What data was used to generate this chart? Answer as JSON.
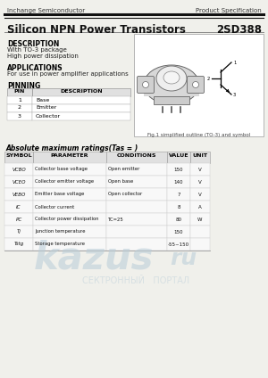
{
  "header_left": "Inchange Semiconductor",
  "header_right": "Product Specification",
  "title_left": "Silicon NPN Power Transistors",
  "title_right": "2SD388",
  "bg_color": "#f0f0eb",
  "description_title": "DESCRIPTION",
  "description_lines": [
    "With TO-3 package",
    "High power dissipation"
  ],
  "applications_title": "APPLICATIONS",
  "applications_lines": [
    "For use in power amplifier applications"
  ],
  "pinning_title": "PINNING",
  "pin_headers": [
    "PIN",
    "DESCRIPTION"
  ],
  "pin_rows": [
    [
      "1",
      "Base"
    ],
    [
      "2",
      "Emitter"
    ],
    [
      "3",
      "Collector"
    ]
  ],
  "fig_caption": "Fig.1 simplified outline (TO-3) and symbol",
  "table_title": "Absolute maximum ratings(Tas = )",
  "table_headers": [
    "SYMBOL",
    "PARAMETER",
    "CONDITIONS",
    "VALUE",
    "UNIT"
  ],
  "sym_display": [
    "VCBO",
    "VCEO",
    "VEBO",
    "IC",
    "PC",
    "Tj",
    "Tstg"
  ],
  "params": [
    "Collector base voltage",
    "Collector emitter voltage",
    "Emitter base voltage",
    "Collector current",
    "Collector power dissipation",
    "Junction temperature",
    "Storage temperature"
  ],
  "conditions": [
    "Open emitter",
    "Open base",
    "Open collector",
    "",
    "TC=25",
    "",
    ""
  ],
  "values": [
    "150",
    "140",
    "7",
    "8",
    "80",
    "150",
    "-55~150"
  ],
  "units": [
    "V",
    "V",
    "V",
    "A",
    "W",
    "",
    ""
  ],
  "watermark1": "kazus",
  "watermark2": "ru",
  "watermark3": "СЕКТРОННЫЙ   ПОРТАЛ"
}
